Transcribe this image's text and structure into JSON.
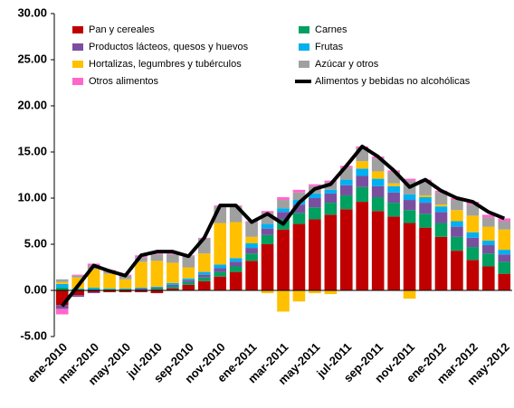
{
  "chart_data": {
    "type": "stacked-bar-line",
    "categories": [
      "ene-2010",
      null,
      "mar-2010",
      null,
      "may-2010",
      null,
      "jul-2010",
      null,
      "sep-2010",
      null,
      "nov-2010",
      null,
      "ene-2011",
      null,
      "mar-2011",
      null,
      "may-2011",
      null,
      "jul-2011",
      null,
      "sep-2011",
      null,
      "nov-2011",
      null,
      "ene-2012",
      null,
      "mar-2012",
      null,
      "may-2012"
    ],
    "series": [
      {
        "name": "Pan y cereales",
        "color": "#c00000",
        "values": [
          -1.6,
          -0.5,
          -0.2,
          -0.2,
          -0.2,
          -0.2,
          -0.3,
          0.2,
          0.6,
          1.0,
          1.5,
          2.0,
          3.2,
          5.0,
          6.6,
          7.2,
          7.7,
          8.2,
          8.8,
          9.6,
          8.6,
          8.0,
          7.3,
          6.8,
          5.8,
          4.3,
          3.3,
          2.6,
          1.8
        ]
      },
      {
        "name": "Carnes",
        "color": "#00a060",
        "values": [
          0.3,
          0.1,
          0.1,
          0.1,
          0.1,
          0.1,
          0.2,
          0.2,
          0.3,
          0.4,
          0.5,
          0.6,
          0.8,
          1.0,
          1.1,
          1.2,
          1.3,
          1.3,
          1.5,
          1.6,
          1.5,
          1.5,
          1.4,
          1.5,
          1.5,
          1.5,
          1.4,
          1.4,
          1.3
        ]
      },
      {
        "name": "Productos lácteos, quesos y huevos",
        "color": "#7a4fa0",
        "values": [
          -0.4,
          -0.2,
          -0.1,
          0,
          0,
          0.1,
          0.1,
          0.2,
          0.2,
          0.3,
          0.4,
          0.5,
          0.6,
          0.7,
          0.8,
          0.9,
          1.0,
          1.0,
          1.1,
          1.2,
          1.2,
          1.1,
          1.1,
          1.2,
          1.2,
          1.1,
          1.0,
          0.9,
          0.8
        ]
      },
      {
        "name": "Frutas",
        "color": "#00b0f0",
        "values": [
          0.4,
          0.1,
          0.2,
          0.1,
          0.1,
          0.1,
          0.1,
          0.2,
          0.2,
          0.3,
          0.4,
          0.4,
          0.5,
          0.5,
          0.4,
          0.5,
          0.5,
          0.4,
          0.6,
          0.8,
          0.8,
          0.7,
          0.6,
          0.6,
          0.6,
          0.6,
          0.6,
          0.5,
          0.5
        ]
      },
      {
        "name": "Hortalizas, legumbres y tubérculos",
        "color": "#ffc000",
        "values": [
          0.2,
          1.2,
          2.0,
          1.6,
          1.0,
          2.8,
          2.8,
          2.2,
          1.2,
          2.0,
          4.5,
          3.9,
          0.7,
          -0.3,
          -2.3,
          -1.2,
          -0.3,
          -0.4,
          0,
          0.8,
          0.8,
          0.3,
          -0.9,
          0.2,
          0.2,
          1.2,
          1.8,
          1.5,
          2.2
        ]
      },
      {
        "name": "Azúcar y otros",
        "color": "#a0a0a0",
        "values": [
          0.3,
          0.2,
          0.4,
          0.3,
          0.4,
          0.5,
          0.7,
          0.9,
          1.2,
          1.6,
          1.8,
          1.7,
          1.6,
          1.2,
          0.9,
          0.8,
          0.8,
          0.8,
          1.3,
          1.4,
          1.4,
          1.2,
          1.5,
          1.5,
          1.3,
          1.1,
          1.2,
          1.0,
          0.9
        ]
      },
      {
        "name": "Otros alimentos",
        "color": "#ff66cc",
        "values": [
          -0.6,
          0.1,
          0.2,
          0.1,
          0.1,
          0.2,
          0.1,
          0.1,
          0.1,
          0.1,
          0.1,
          0.1,
          0.1,
          0.2,
          0.3,
          0.3,
          0.2,
          0.2,
          0.2,
          0.2,
          0.2,
          0.2,
          0.2,
          0.2,
          0.2,
          0.2,
          0.3,
          0.3,
          0.3
        ]
      }
    ],
    "line": {
      "name": "Alimentos y bebidas no alcohólicas",
      "color": "#000000",
      "values": [
        -1.7,
        0.5,
        2.7,
        2.1,
        1.6,
        3.8,
        4.2,
        4.2,
        3.7,
        5.7,
        9.2,
        9.2,
        7.4,
        8.3,
        7.2,
        9.5,
        11.0,
        11.5,
        13.5,
        15.6,
        14.5,
        13.0,
        11.2,
        12.0,
        10.8,
        10.0,
        9.6,
        8.5,
        7.8
      ]
    },
    "ylim": [
      -5,
      30
    ],
    "yticks": [
      {
        "value": -5,
        "label": "-5.00"
      },
      {
        "value": 0,
        "label": "0.00"
      },
      {
        "value": 5,
        "label": "5.00"
      },
      {
        "value": 10,
        "label": "10.00"
      },
      {
        "value": 15,
        "label": "15.00"
      },
      {
        "value": 20,
        "label": "20.00"
      },
      {
        "value": 25,
        "label": "25.00"
      },
      {
        "value": 30,
        "label": "30.00"
      }
    ],
    "grid": false
  }
}
